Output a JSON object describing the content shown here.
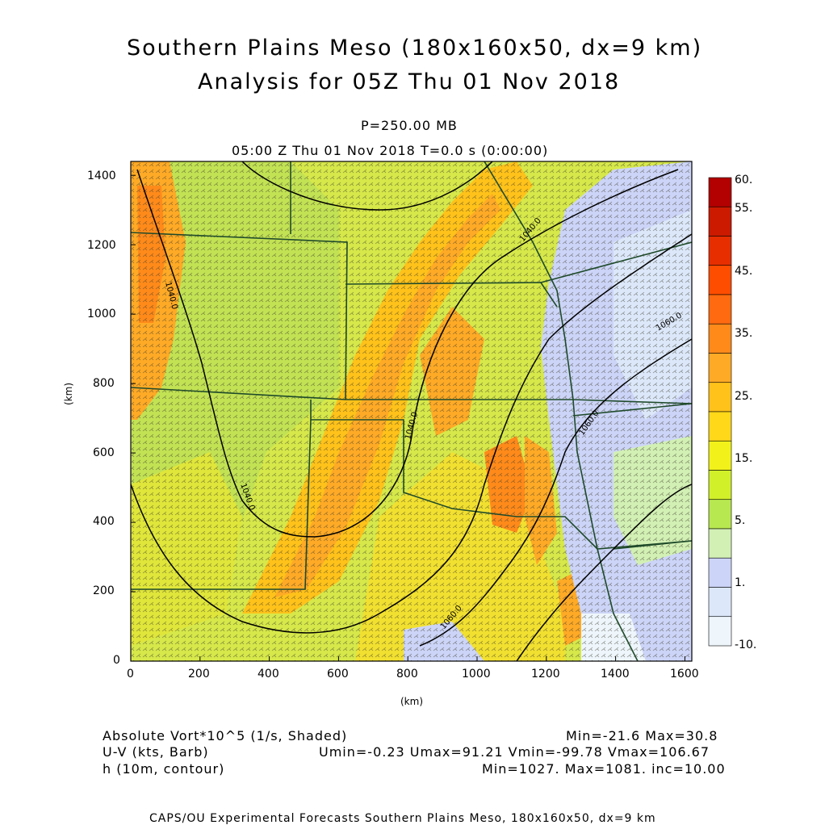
{
  "title": {
    "line1": "Southern Plains Meso (180x160x50, dx=9 km)",
    "line2": "Analysis for 05Z Thu 01 Nov 2018"
  },
  "level": "P=250.00 MB",
  "valid_time": "05:00 Z Thu 01 Nov 2018    T=0.0 s (0:00:00)",
  "axes": {
    "xlabel": "(km)",
    "ylabel": "(km)",
    "x_ticks": [
      "0",
      "200",
      "400",
      "600",
      "800",
      "1000",
      "1200",
      "1400",
      "1600"
    ],
    "y_ticks": [
      "0",
      "200",
      "400",
      "600",
      "800",
      "1000",
      "1200",
      "1400"
    ],
    "xlim": [
      0,
      1620
    ],
    "ylim": [
      0,
      1440
    ]
  },
  "colorbar": {
    "labels": [
      "60.",
      "55.",
      "45.",
      "35.",
      "25.",
      "15.",
      "5.",
      "1.",
      "-10."
    ],
    "colors": [
      "#b30000",
      "#cc1a00",
      "#e62e00",
      "#ff4d00",
      "#ff6a10",
      "#ff8a1a",
      "#ffaa26",
      "#ffc21a",
      "#ffd81a",
      "#f2f21a",
      "#d2f02a",
      "#b8e850",
      "#d2f0b4",
      "#ccd4f7",
      "#dce8fa",
      "#eef6fc"
    ]
  },
  "contour_labels": [
    "1040.0",
    "1040.0",
    "1040.0",
    "1040.0",
    "1060.0",
    "1060.0",
    "1060.0"
  ],
  "legend": {
    "row1_field": "Absolute Vort*10^5 (1/s, Shaded)",
    "row1_stats": "Min=-21.6  Max=30.8",
    "row2_field": "U-V (kts, Barb)",
    "row2_stats": "Umin=-0.23 Umax=91.21 Vmin=-99.78 Vmax=106.67",
    "row3_field": "h (10m, contour)",
    "row3_stats": "Min=1027.  Max=1081.  inc=10.00"
  },
  "credit": "CAPS/OU Experimental Forecasts  Southern Plains Meso, 180x160x50, dx=9 km"
}
